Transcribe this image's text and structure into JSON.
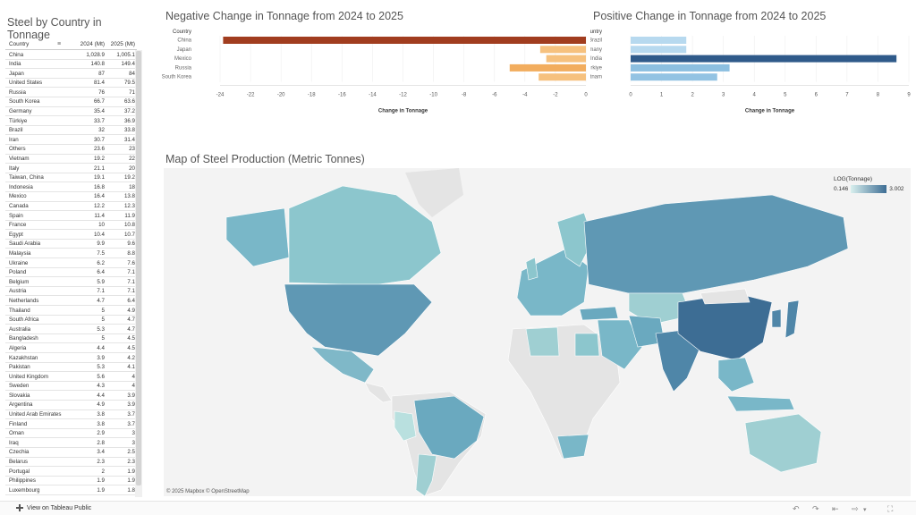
{
  "table": {
    "title": "Steel by Country in Tonnage",
    "col_country": "Country",
    "col_2024": "2024 (Mt)",
    "col_2025": "2025 (Mt)",
    "rows": [
      [
        "China",
        "1,028.9",
        "1,005.1"
      ],
      [
        "India",
        "140.8",
        "149.4"
      ],
      [
        "Japan",
        "87",
        "84"
      ],
      [
        "United States",
        "81.4",
        "79.5"
      ],
      [
        "Russia",
        "76",
        "71"
      ],
      [
        "South Korea",
        "66.7",
        "63.6"
      ],
      [
        "Germany",
        "35.4",
        "37.2"
      ],
      [
        "Türkiye",
        "33.7",
        "36.9"
      ],
      [
        "Brazil",
        "32",
        "33.8"
      ],
      [
        "Iran",
        "30.7",
        "31.4"
      ],
      [
        "Others",
        "23.6",
        "23"
      ],
      [
        "Vietnam",
        "19.2",
        "22"
      ],
      [
        "Italy",
        "21.1",
        "20"
      ],
      [
        "Taiwan, China",
        "19.1",
        "19.2"
      ],
      [
        "Indonesia",
        "16.8",
        "18"
      ],
      [
        "Mexico",
        "16.4",
        "13.8"
      ],
      [
        "Canada",
        "12.2",
        "12.3"
      ],
      [
        "Spain",
        "11.4",
        "11.9"
      ],
      [
        "France",
        "10",
        "10.8"
      ],
      [
        "Egypt",
        "10.4",
        "10.7"
      ],
      [
        "Saudi Arabia",
        "9.9",
        "9.6"
      ],
      [
        "Malaysia",
        "7.5",
        "8.8"
      ],
      [
        "Ukraine",
        "6.2",
        "7.6"
      ],
      [
        "Poland",
        "6.4",
        "7.1"
      ],
      [
        "Belgium",
        "5.9",
        "7.1"
      ],
      [
        "Austria",
        "7.1",
        "7.1"
      ],
      [
        "Netherlands",
        "4.7",
        "6.4"
      ],
      [
        "Thailand",
        "5",
        "4.9"
      ],
      [
        "South Africa",
        "5",
        "4.7"
      ],
      [
        "Australia",
        "5.3",
        "4.7"
      ],
      [
        "Bangladesh",
        "5",
        "4.5"
      ],
      [
        "Algeria",
        "4.4",
        "4.5"
      ],
      [
        "Kazakhstan",
        "3.9",
        "4.2"
      ],
      [
        "Pakistan",
        "5.3",
        "4.1"
      ],
      [
        "United Kingdom",
        "5.6",
        "4"
      ],
      [
        "Sweden",
        "4.3",
        "4"
      ],
      [
        "Slovakia",
        "4.4",
        "3.9"
      ],
      [
        "Argentina",
        "4.9",
        "3.9"
      ],
      [
        "United Arab Emirates",
        "3.8",
        "3.7"
      ],
      [
        "Finland",
        "3.8",
        "3.7"
      ],
      [
        "Oman",
        "2.9",
        "3"
      ],
      [
        "Iraq",
        "2.8",
        "3"
      ],
      [
        "Czechia",
        "3.4",
        "2.5"
      ],
      [
        "Belarus",
        "2.3",
        "2.3"
      ],
      [
        "Portugal",
        "2",
        "1.9"
      ],
      [
        "Philippines",
        "1.9",
        "1.9"
      ],
      [
        "Luxembourg",
        "1.9",
        "1.8"
      ]
    ]
  },
  "negative_chart": {
    "title": "Negative Change in Tonnage from 2024 to 2025",
    "axis_label": "Change in Tonnage",
    "header": "Country"
  },
  "positive_chart": {
    "title": "Positive Change in Tonnage from 2024 to 2025",
    "axis_label": "Change in Tonnage",
    "header": "Country"
  },
  "chart_data": [
    {
      "type": "bar",
      "title": "Negative Change in Tonnage from 2024 to 2025",
      "xlabel": "Change in Tonnage",
      "ylabel": "Country",
      "categories": [
        "China",
        "Japan",
        "Mexico",
        "Russia",
        "South Korea"
      ],
      "values": [
        -23.8,
        -3.0,
        -2.6,
        -5.0,
        -3.1
      ],
      "xlim": [
        -24,
        0
      ],
      "ticks": [
        "-24",
        "-22",
        "-20",
        "-18",
        "-16",
        "-14",
        "-12",
        "-10",
        "-8",
        "-6",
        "-4",
        "-2",
        "0"
      ],
      "colors": [
        "#a13d1f",
        "#f6c17e",
        "#f6c17e",
        "#f2ad5e",
        "#f6c17e"
      ]
    },
    {
      "type": "bar",
      "title": "Positive Change in Tonnage from 2024 to 2025",
      "xlabel": "Change in Tonnage",
      "ylabel": "Country",
      "categories": [
        "Brazil",
        "Germany",
        "India",
        "Türkiye",
        "Vietnam"
      ],
      "values": [
        1.8,
        1.8,
        8.6,
        3.2,
        2.8
      ],
      "xlim": [
        0,
        9
      ],
      "ticks": [
        "0",
        "1",
        "2",
        "3",
        "4",
        "5",
        "6",
        "7",
        "8",
        "9"
      ],
      "colors": [
        "#b7d9ef",
        "#b7d9ef",
        "#2f5a8a",
        "#8cbfe0",
        "#93c3e3"
      ]
    }
  ],
  "map": {
    "title": "Map of Steel Production (Metric Tonnes)",
    "legend_title": "LOG(Tonnage)",
    "legend_min": "0.146",
    "legend_max": "3.002",
    "attribution": "© 2025 Mapbox  © OpenStreetMap",
    "colors": {
      "land_none": "#e4e4e4",
      "ocean": "#f3f3f3",
      "low": "#b9e0df",
      "mid": "#79b7c8",
      "high": "#3d6d94"
    }
  },
  "footer": {
    "link": "View on Tableau Public"
  }
}
